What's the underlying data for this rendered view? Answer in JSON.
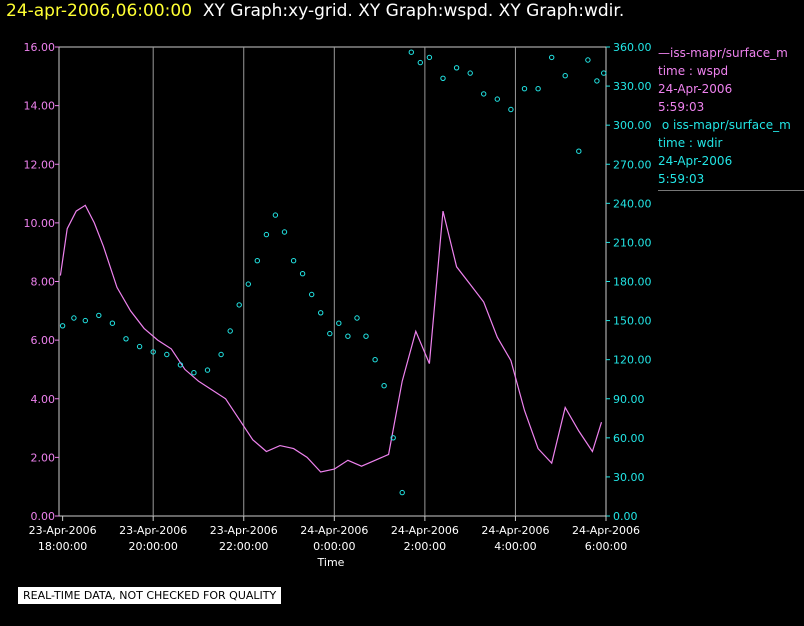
{
  "header": {
    "timestamp": "24-apr-2006,06:00:00",
    "graph_titles": "XY Graph:xy-grid.  XY Graph:wspd.  XY Graph:wdir."
  },
  "legend": {
    "wspd": {
      "name": "iss-mapr/surface_m",
      "var": "time : wspd",
      "date": "24-Apr-2006",
      "time": "5:59:03",
      "color": "#ee82ee"
    },
    "wdir": {
      "name": "iss-mapr/surface_m",
      "var": "time : wdir",
      "date": "24-Apr-2006",
      "time": "5:59:03",
      "color": "#22e5e5"
    }
  },
  "footer": {
    "note": "REAL-TIME DATA, NOT CHECKED FOR QUALITY"
  },
  "chart_data": {
    "type": "line",
    "xlabel": "Time",
    "x_ticks": [
      {
        "date": "23-Apr-2006",
        "time": "18:00:00"
      },
      {
        "date": "23-Apr-2006",
        "time": "20:00:00"
      },
      {
        "date": "23-Apr-2006",
        "time": "22:00:00"
      },
      {
        "date": "24-Apr-2006",
        "time": "0:00:00"
      },
      {
        "date": "24-Apr-2006",
        "time": "2:00:00"
      },
      {
        "date": "24-Apr-2006",
        "time": "4:00:00"
      },
      {
        "date": "24-Apr-2006",
        "time": "6:00:00"
      }
    ],
    "x_tick_hours": [
      18,
      20,
      22,
      24,
      26,
      28,
      30
    ],
    "xlim_hours": [
      17.92,
      30.0
    ],
    "y_left": {
      "ticks": [
        "0.00",
        "2.00",
        "4.00",
        "6.00",
        "8.00",
        "10.00",
        "12.00",
        "14.00",
        "16.00"
      ],
      "range": [
        0,
        16
      ]
    },
    "y_right": {
      "ticks": [
        "0.00",
        "30.00",
        "60.00",
        "90.00",
        "120.00",
        "150.00",
        "180.00",
        "210.00",
        "240.00",
        "270.00",
        "300.00",
        "330.00",
        "360.00"
      ],
      "range": [
        0,
        360
      ]
    },
    "grid": "vertical lines at x ticks",
    "series": [
      {
        "name": "iss-mapr/surface_m time : wspd",
        "axis": "left",
        "style": "line",
        "color": "#ee82ee",
        "points": [
          [
            17.95,
            8.2
          ],
          [
            18.1,
            9.8
          ],
          [
            18.3,
            10.4
          ],
          [
            18.5,
            10.6
          ],
          [
            18.7,
            10.0
          ],
          [
            18.9,
            9.2
          ],
          [
            19.2,
            7.8
          ],
          [
            19.5,
            7.0
          ],
          [
            19.8,
            6.4
          ],
          [
            20.1,
            6.0
          ],
          [
            20.4,
            5.7
          ],
          [
            20.7,
            5.0
          ],
          [
            21.0,
            4.6
          ],
          [
            21.3,
            4.3
          ],
          [
            21.6,
            4.0
          ],
          [
            21.9,
            3.3
          ],
          [
            22.2,
            2.6
          ],
          [
            22.5,
            2.2
          ],
          [
            22.8,
            2.4
          ],
          [
            23.1,
            2.3
          ],
          [
            23.4,
            2.0
          ],
          [
            23.7,
            1.5
          ],
          [
            24.0,
            1.6
          ],
          [
            24.3,
            1.9
          ],
          [
            24.6,
            1.7
          ],
          [
            24.9,
            1.9
          ],
          [
            25.2,
            2.1
          ],
          [
            25.5,
            4.6
          ],
          [
            25.8,
            6.3
          ],
          [
            26.1,
            5.2
          ],
          [
            26.4,
            10.4
          ],
          [
            26.7,
            8.5
          ],
          [
            27.0,
            7.9
          ],
          [
            27.3,
            7.3
          ],
          [
            27.6,
            6.1
          ],
          [
            27.9,
            5.3
          ],
          [
            28.2,
            3.6
          ],
          [
            28.5,
            2.3
          ],
          [
            28.8,
            1.8
          ],
          [
            29.1,
            3.7
          ],
          [
            29.4,
            2.9
          ],
          [
            29.7,
            2.2
          ],
          [
            29.9,
            3.2
          ]
        ]
      },
      {
        "name": "iss-mapr/surface_m time : wdir",
        "axis": "right",
        "style": "points",
        "color": "#22e5e5",
        "points": [
          [
            18.0,
            146
          ],
          [
            18.25,
            152
          ],
          [
            18.5,
            150
          ],
          [
            18.8,
            154
          ],
          [
            19.1,
            148
          ],
          [
            19.4,
            136
          ],
          [
            19.7,
            130
          ],
          [
            20.0,
            126
          ],
          [
            20.3,
            124
          ],
          [
            20.6,
            116
          ],
          [
            20.9,
            110
          ],
          [
            21.2,
            112
          ],
          [
            21.5,
            124
          ],
          [
            21.7,
            142
          ],
          [
            21.9,
            162
          ],
          [
            22.1,
            178
          ],
          [
            22.3,
            196
          ],
          [
            22.5,
            216
          ],
          [
            22.7,
            231
          ],
          [
            22.9,
            218
          ],
          [
            23.1,
            196
          ],
          [
            23.3,
            186
          ],
          [
            23.5,
            170
          ],
          [
            23.7,
            156
          ],
          [
            23.9,
            140
          ],
          [
            24.1,
            148
          ],
          [
            24.3,
            138
          ],
          [
            24.5,
            152
          ],
          [
            24.7,
            138
          ],
          [
            24.9,
            120
          ],
          [
            25.1,
            100
          ],
          [
            25.3,
            60
          ],
          [
            25.5,
            18
          ],
          [
            25.7,
            356
          ],
          [
            25.9,
            348
          ],
          [
            26.1,
            352
          ],
          [
            26.4,
            336
          ],
          [
            26.7,
            344
          ],
          [
            27.0,
            340
          ],
          [
            27.3,
            324
          ],
          [
            27.6,
            320
          ],
          [
            27.9,
            312
          ],
          [
            28.2,
            328
          ],
          [
            28.5,
            328
          ],
          [
            28.8,
            352
          ],
          [
            29.1,
            338
          ],
          [
            29.4,
            280
          ],
          [
            29.6,
            350
          ],
          [
            29.8,
            334
          ],
          [
            29.95,
            340
          ]
        ]
      }
    ]
  }
}
